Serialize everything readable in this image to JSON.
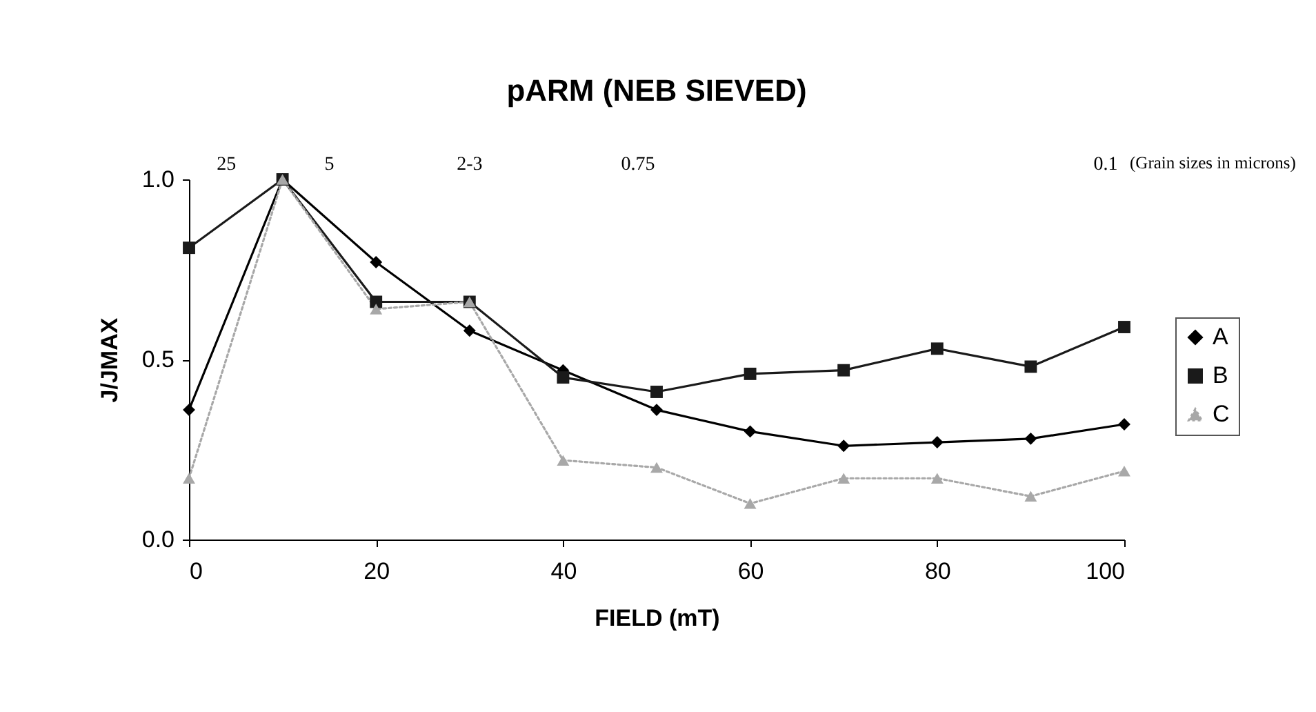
{
  "chart_data": {
    "type": "line",
    "title": "pARM (NEB SIEVED)",
    "xlabel": "FIELD (mT)",
    "ylabel": "J/JMAX",
    "annotations": [
      "25",
      "5",
      "2-3",
      "0.75",
      "0.1",
      "(Grain sizes in microns)"
    ],
    "x": [
      0,
      10,
      20,
      30,
      40,
      50,
      60,
      70,
      80,
      90,
      100
    ],
    "series": [
      {
        "name": "A",
        "color": "#000000",
        "marker": "diamond",
        "line_style": "solid",
        "values": [
          0.36,
          1.0,
          0.77,
          0.58,
          0.47,
          0.36,
          0.3,
          0.26,
          0.27,
          0.28,
          0.32
        ]
      },
      {
        "name": "B",
        "color": "#1a1a1a",
        "marker": "square",
        "line_style": "solid",
        "values": [
          0.81,
          1.0,
          0.66,
          0.66,
          0.45,
          0.41,
          0.46,
          0.47,
          0.53,
          0.48,
          0.59
        ]
      },
      {
        "name": "C",
        "color": "#a8a8a8",
        "marker": "triangle",
        "line_style": "dotted",
        "values": [
          0.17,
          1.0,
          0.64,
          0.66,
          0.22,
          0.2,
          0.1,
          0.17,
          0.17,
          0.12,
          0.19
        ]
      }
    ],
    "xlim": [
      0,
      100
    ],
    "xticks": [
      0,
      20,
      40,
      60,
      80,
      100
    ],
    "ylim": [
      0,
      1
    ],
    "yticks": [
      {
        "value": 0,
        "label": "0.0"
      },
      {
        "value": 0.5,
        "label": "0.5"
      },
      {
        "value": 1,
        "label": "1.0"
      }
    ],
    "grid": false,
    "legend": "right"
  }
}
